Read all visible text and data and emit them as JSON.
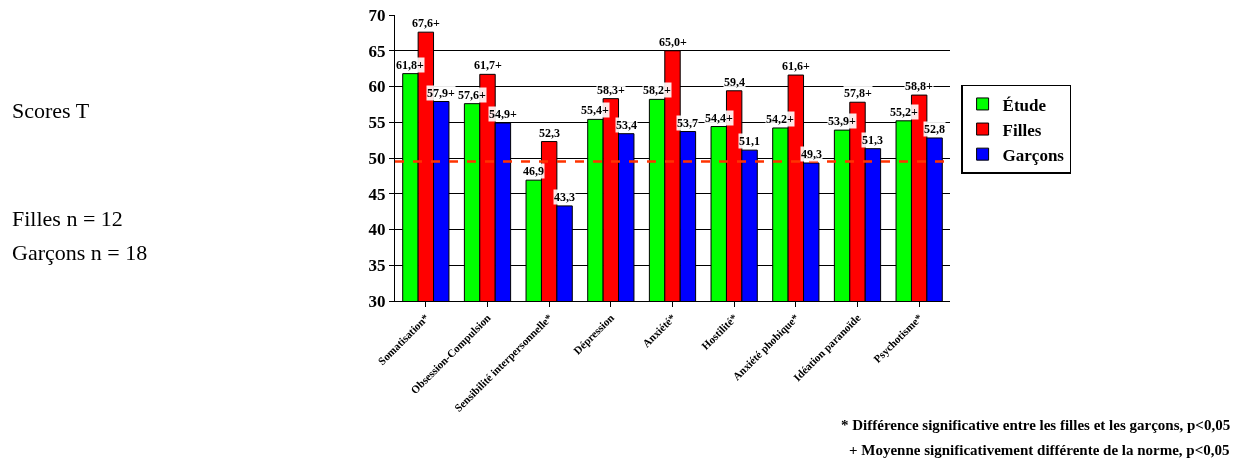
{
  "chart_data": {
    "type": "bar",
    "categories": [
      "Somatisation*",
      "Obsession-Compulsion",
      "Sensibilité interpersonnelle*",
      "Dépression",
      "Anxiété*",
      "Hostilité*",
      "Anxiété phobique*",
      "Idéation paranoïde",
      "Psychotisme*"
    ],
    "series": [
      {
        "name": "Étude",
        "color": "#00ff00",
        "values": [
          61.8,
          57.6,
          46.9,
          55.4,
          58.2,
          54.4,
          54.2,
          53.9,
          55.2
        ],
        "value_labels": [
          "61,8+",
          "57,6+",
          "46,9",
          "55,4+",
          "58,2+",
          "54,4+",
          "54,2+",
          "53,9+",
          "55,2+"
        ]
      },
      {
        "name": "Filles",
        "color": "#ff0000",
        "values": [
          67.6,
          61.7,
          52.3,
          58.3,
          65.0,
          59.4,
          61.6,
          57.8,
          58.8
        ],
        "value_labels": [
          "67,6+",
          "61,7+",
          "52,3",
          "58,3+",
          "65,0+",
          "59,4",
          "61,6+",
          "57,8+",
          "58,8+"
        ]
      },
      {
        "name": "Garçons",
        "color": "#0000ff",
        "values": [
          57.9,
          54.9,
          43.3,
          53.4,
          53.7,
          51.1,
          49.3,
          51.3,
          52.8
        ],
        "value_labels": [
          "57,9+",
          "54,9+",
          "43,3",
          "53,4",
          "53,7",
          "51,1",
          "49,3",
          "51,3",
          "52,8"
        ]
      }
    ],
    "ylim": [
      30,
      70
    ],
    "yticks": [
      30,
      35,
      40,
      45,
      50,
      55,
      60,
      65,
      70
    ],
    "grid": "y",
    "legend": "right",
    "ref_lines": [
      {
        "axis": "y",
        "value": 49.5,
        "color": "#ff3300",
        "line_style": "dashed"
      }
    ],
    "annotations": [
      "Scores T",
      "Filles n = 12",
      "Garçons n = 18",
      "* Différence significative entre les filles et les garçons, p<0,05",
      "+ Moyenne significativement différente de la norme, p<0,05"
    ]
  }
}
